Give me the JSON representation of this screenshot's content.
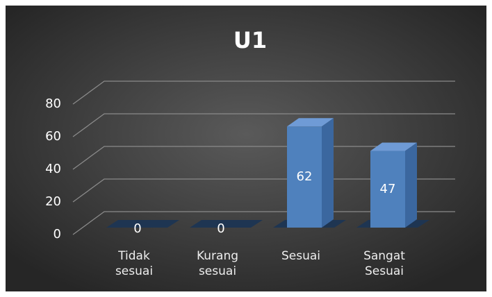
{
  "chart_data": {
    "type": "bar3d",
    "title": "U1",
    "categories": [
      "Tidak sesuai",
      "Kurang sesuai",
      "Sesuai",
      "Sangat Sesuai"
    ],
    "values": [
      0,
      0,
      62,
      47
    ],
    "color": "#4f81bd",
    "ylim": [
      0,
      80
    ],
    "yticks": [
      0,
      20,
      40,
      60,
      80
    ],
    "grid": true
  }
}
